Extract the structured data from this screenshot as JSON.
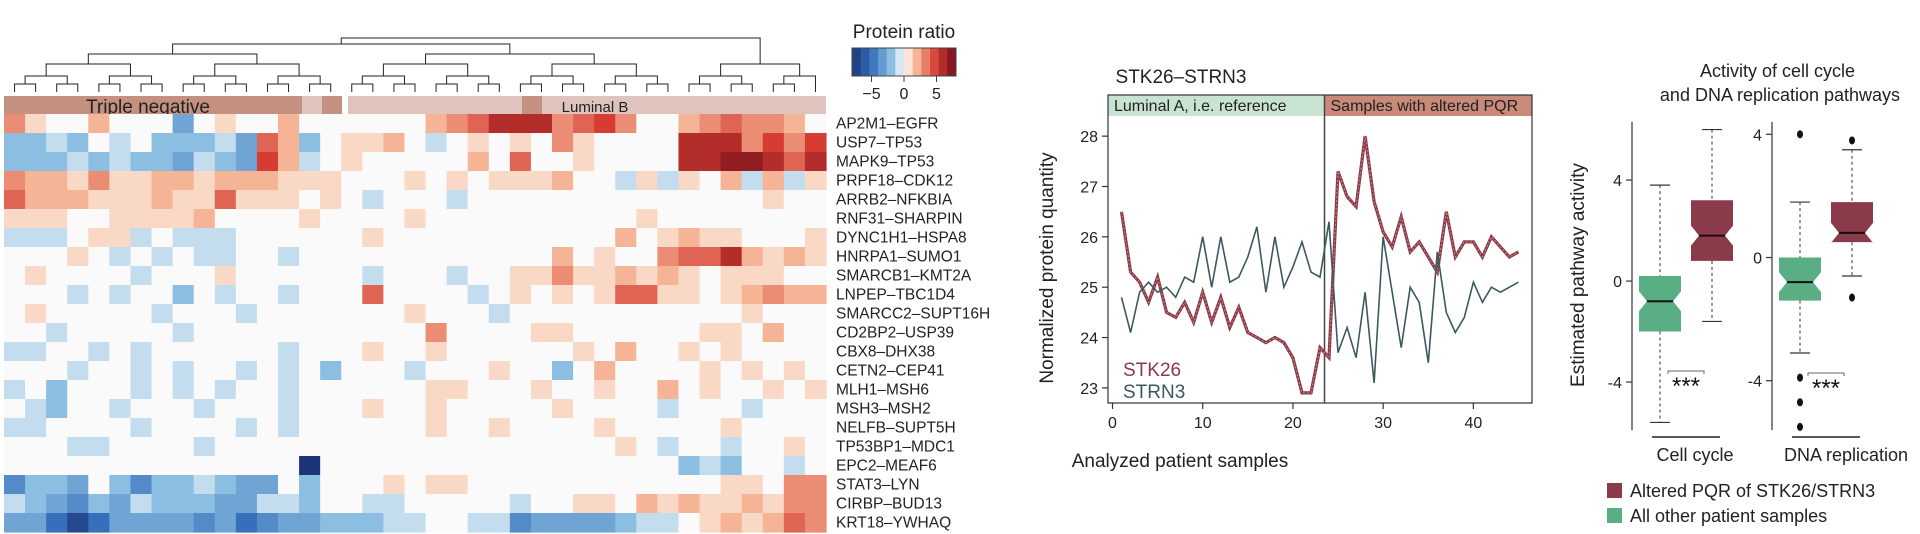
{
  "colors": {
    "teal_line": "#3b5a5e",
    "red_line": "#8b3a4a",
    "box_red": "#8b3a4a",
    "box_green": "#5aae83",
    "band_reference": "#c9e3d3",
    "band_altered": "#c98a7a",
    "bar_triple": "#c4907f",
    "bar_luminal": "#dfc4bd"
  },
  "chart_data": [
    {
      "type": "heatmap",
      "legend_title": "Protein ratio",
      "legend_ticks": [
        "−5",
        "0",
        "5"
      ],
      "legend_range": [
        -8,
        8
      ],
      "subtypes": [
        {
          "label": "Triple negative"
        },
        {
          "label": "Luminal B"
        }
      ],
      "rows": [
        "AP2M1–EGFR",
        "USP7–TP53",
        "MAPK9–TP53",
        "PRPF18–CDK12",
        "ARRB2–NFKBIA",
        "RNF31–SHARPIN",
        "DYNC1H1–HSPA8",
        "HNRPA1–SUMO1",
        "SMARCB1–KMT2A",
        "LNPEP–TBC1D4",
        "SMARCC2–SUPT16H",
        "CD2BP2–USP39",
        "CBX8–DHX38",
        "CETN2–CEP41",
        "MLH1–MSH6",
        "MSH3–MSH2",
        "NELFB–SUPT5H",
        "TP53BP1–MDC1",
        "EPC2–MEAF6",
        "STAT3–LYN",
        "CIRBP–BUD13",
        "KRT18–YWHAQ"
      ],
      "values": [
        [
          3,
          1,
          0,
          0,
          2,
          0,
          0,
          0,
          -3,
          0,
          1,
          0,
          0,
          2,
          0,
          0,
          0,
          0,
          0,
          0,
          2,
          3,
          4,
          6,
          6,
          6,
          3,
          4,
          5,
          3,
          0,
          0,
          2,
          3,
          4,
          3,
          3,
          2,
          0
        ],
        [
          -2,
          -2,
          -1,
          -2,
          0,
          -1,
          0,
          -2,
          -2,
          -2,
          -1,
          -3,
          4,
          2,
          -2,
          0,
          1,
          1,
          2,
          0,
          -1,
          0,
          1,
          0,
          1,
          0,
          3,
          1,
          0,
          0,
          0,
          0,
          6,
          6,
          6,
          3,
          5,
          3,
          5
        ],
        [
          -2,
          -2,
          -2,
          -1,
          -2,
          -1,
          -2,
          -2,
          -3,
          -1,
          -2,
          -3,
          5,
          2,
          -1,
          0,
          1,
          0,
          0,
          0,
          0,
          0,
          2,
          0,
          4,
          0,
          0,
          1,
          0,
          0,
          0,
          0,
          6,
          6,
          7,
          7,
          6,
          4,
          6
        ],
        [
          3,
          2,
          2,
          1,
          3,
          1,
          1,
          2,
          2,
          1,
          2,
          2,
          2,
          1,
          1,
          1,
          0,
          0,
          0,
          1,
          0,
          1,
          0,
          1,
          1,
          1,
          2,
          0,
          0,
          -1,
          1,
          -1,
          1,
          0,
          2,
          -1,
          2,
          -1,
          1
        ],
        [
          4,
          2,
          2,
          2,
          1,
          1,
          1,
          2,
          1,
          1,
          4,
          1,
          1,
          1,
          0,
          1,
          0,
          -1,
          0,
          0,
          0,
          -1,
          0,
          0,
          0,
          0,
          0,
          0,
          0,
          0,
          0,
          0,
          0,
          0,
          0,
          0,
          1,
          0,
          0
        ],
        [
          1,
          1,
          1,
          0,
          0,
          1,
          1,
          1,
          1,
          2,
          0,
          0,
          0,
          0,
          1,
          0,
          0,
          0,
          0,
          1,
          0,
          0,
          0,
          0,
          0,
          0,
          0,
          0,
          0,
          0,
          1,
          0,
          0,
          0,
          0,
          0,
          0,
          0,
          0
        ],
        [
          -1,
          -1,
          -1,
          0,
          1,
          1,
          -1,
          0,
          -1,
          -1,
          -1,
          0,
          0,
          0,
          0,
          0,
          0,
          1,
          0,
          0,
          0,
          0,
          0,
          0,
          0,
          0,
          0,
          0,
          0,
          2,
          0,
          1,
          2,
          1,
          1,
          0,
          0,
          0,
          1
        ],
        [
          0,
          0,
          0,
          1,
          0,
          -1,
          0,
          -1,
          0,
          -1,
          -1,
          0,
          0,
          -1,
          0,
          0,
          0,
          0,
          0,
          0,
          0,
          0,
          0,
          0,
          0,
          0,
          2,
          0,
          1,
          0,
          0,
          3,
          4,
          4,
          6,
          2,
          1,
          2,
          1
        ],
        [
          0,
          1,
          0,
          0,
          0,
          0,
          -1,
          0,
          0,
          0,
          1,
          0,
          0,
          0,
          0,
          0,
          0,
          -1,
          0,
          0,
          0,
          -1,
          0,
          0,
          1,
          1,
          3,
          1,
          1,
          2,
          1,
          2,
          1,
          0,
          1,
          1,
          1,
          0,
          0
        ],
        [
          0,
          0,
          0,
          -1,
          0,
          -1,
          0,
          0,
          -2,
          0,
          -1,
          0,
          0,
          -1,
          0,
          0,
          0,
          4,
          0,
          0,
          0,
          0,
          -1,
          0,
          1,
          0,
          1,
          0,
          1,
          4,
          4,
          1,
          1,
          0,
          1,
          2,
          3,
          2,
          2
        ],
        [
          0,
          1,
          0,
          0,
          0,
          0,
          0,
          -1,
          0,
          0,
          0,
          -1,
          0,
          0,
          0,
          0,
          0,
          0,
          0,
          1,
          0,
          0,
          0,
          -1,
          0,
          0,
          0,
          0,
          0,
          0,
          0,
          0,
          0,
          0,
          0,
          1,
          0,
          0,
          0
        ],
        [
          0,
          0,
          -1,
          0,
          0,
          0,
          0,
          0,
          -1,
          0,
          0,
          0,
          0,
          0,
          0,
          0,
          0,
          0,
          0,
          0,
          3,
          0,
          0,
          0,
          0,
          1,
          1,
          0,
          0,
          0,
          0,
          0,
          0,
          1,
          1,
          0,
          2,
          0,
          0
        ],
        [
          -1,
          -1,
          0,
          0,
          -1,
          0,
          -1,
          0,
          0,
          0,
          0,
          0,
          0,
          -1,
          0,
          0,
          0,
          1,
          0,
          0,
          1,
          0,
          0,
          0,
          0,
          0,
          0,
          1,
          0,
          2,
          0,
          0,
          1,
          0,
          1,
          0,
          0,
          0,
          0
        ],
        [
          0,
          0,
          0,
          -1,
          0,
          0,
          -1,
          0,
          -1,
          0,
          0,
          -1,
          0,
          -1,
          0,
          -2,
          0,
          0,
          0,
          -1,
          0,
          0,
          0,
          1,
          0,
          0,
          -2,
          0,
          2,
          0,
          0,
          0,
          0,
          1,
          0,
          1,
          0,
          1,
          0
        ],
        [
          -1,
          0,
          -2,
          0,
          0,
          0,
          -1,
          0,
          -1,
          0,
          -1,
          0,
          0,
          -1,
          0,
          0,
          0,
          0,
          0,
          0,
          1,
          1,
          0,
          0,
          0,
          1,
          0,
          0,
          1,
          0,
          0,
          2,
          0,
          1,
          0,
          0,
          1,
          0,
          1
        ],
        [
          0,
          -1,
          -2,
          0,
          0,
          -1,
          0,
          0,
          0,
          -1,
          0,
          0,
          0,
          -1,
          0,
          0,
          0,
          1,
          0,
          0,
          1,
          0,
          0,
          0,
          0,
          0,
          1,
          0,
          0,
          0,
          0,
          -1,
          0,
          0,
          0,
          -1,
          0,
          0,
          0
        ],
        [
          -1,
          -1,
          0,
          0,
          0,
          0,
          -1,
          0,
          0,
          0,
          0,
          -1,
          0,
          -1,
          0,
          0,
          0,
          0,
          0,
          0,
          1,
          0,
          0,
          1,
          0,
          0,
          0,
          0,
          1,
          0,
          0,
          0,
          0,
          0,
          1,
          0,
          0,
          0,
          0
        ],
        [
          0,
          0,
          0,
          -1,
          -1,
          0,
          0,
          0,
          0,
          -1,
          0,
          0,
          0,
          0,
          0,
          0,
          0,
          0,
          0,
          0,
          0,
          0,
          0,
          0,
          0,
          0,
          0,
          0,
          0,
          1,
          0,
          -1,
          0,
          0,
          -1,
          0,
          0,
          1,
          0
        ],
        [
          0,
          0,
          0,
          0,
          0,
          0,
          0,
          0,
          0,
          0,
          0,
          0,
          0,
          0,
          -8,
          0,
          0,
          0,
          0,
          0,
          0,
          0,
          0,
          0,
          0,
          0,
          0,
          0,
          0,
          0,
          0,
          0,
          -2,
          -1,
          -2,
          0,
          0,
          -1,
          0
        ],
        [
          -4,
          -2,
          -2,
          -3,
          0,
          -2,
          -4,
          -2,
          -2,
          -1,
          -2,
          -3,
          -3,
          0,
          -2,
          0,
          0,
          0,
          1,
          0,
          1,
          1,
          0,
          0,
          0,
          0,
          0,
          0,
          0,
          0,
          0,
          0,
          0,
          0,
          1,
          1,
          0,
          3,
          3
        ],
        [
          -1,
          -2,
          -3,
          -4,
          -2,
          -3,
          -1,
          -2,
          -2,
          -2,
          -3,
          -3,
          -1,
          -1,
          -2,
          0,
          0,
          -1,
          -1,
          0,
          0,
          0,
          0,
          0,
          -1,
          0,
          0,
          1,
          1,
          0,
          2,
          1,
          2,
          1,
          1,
          2,
          1,
          3,
          3
        ],
        [
          -3,
          -3,
          -5,
          -7,
          -5,
          -3,
          -3,
          -3,
          -3,
          -4,
          -3,
          -5,
          -4,
          -3,
          -3,
          -2,
          -2,
          -2,
          -1,
          -1,
          0,
          0,
          -1,
          -1,
          -4,
          -3,
          -3,
          -3,
          -3,
          -2,
          -1,
          -1,
          0,
          1,
          2,
          1,
          2,
          4,
          3
        ]
      ]
    },
    {
      "type": "line",
      "title": "STK26–STRN3",
      "xlabel": "Analyzed patient samples",
      "ylabel": "Normalized protein quantity",
      "xlim": [
        -0.5,
        46.5
      ],
      "ylim": [
        22.7,
        28.4
      ],
      "xticks": [
        0,
        10,
        20,
        30,
        40
      ],
      "yticks": [
        23,
        24,
        25,
        26,
        27,
        28
      ],
      "reference_label": "Luminal A, i.e. reference",
      "altered_label": "Samples with altered PQR",
      "split_x": 23.5,
      "series": [
        {
          "name": "STK26",
          "x": [
            1,
            2,
            3,
            4,
            5,
            6,
            7,
            8,
            9,
            10,
            11,
            12,
            13,
            14,
            15,
            16,
            17,
            18,
            19,
            20,
            21,
            22,
            23,
            24,
            25,
            26,
            27,
            28,
            29,
            30,
            31,
            32,
            33,
            34,
            35,
            36,
            37,
            38,
            39,
            40,
            41,
            42,
            43,
            44,
            45
          ],
          "values": [
            26.5,
            25.3,
            25.1,
            24.7,
            25.2,
            24.5,
            24.4,
            24.7,
            24.3,
            24.9,
            24.3,
            24.8,
            24.2,
            24.6,
            24.1,
            24.0,
            23.9,
            24.0,
            23.9,
            23.6,
            22.9,
            22.9,
            23.8,
            23.6,
            27.3,
            26.8,
            26.6,
            28.0,
            26.7,
            26.1,
            25.8,
            26.4,
            25.7,
            25.9,
            25.6,
            25.3,
            26.5,
            25.6,
            25.9,
            25.9,
            25.6,
            26.0,
            25.8,
            25.6,
            25.7
          ]
        },
        {
          "name": "STRN3",
          "x": [
            1,
            2,
            3,
            4,
            5,
            6,
            7,
            8,
            9,
            10,
            11,
            12,
            13,
            14,
            15,
            16,
            17,
            18,
            19,
            20,
            21,
            22,
            23,
            24,
            25,
            26,
            27,
            28,
            29,
            30,
            31,
            32,
            33,
            34,
            35,
            36,
            37,
            38,
            39,
            40,
            41,
            42,
            43,
            44,
            45
          ],
          "values": [
            24.8,
            24.1,
            24.9,
            25.1,
            24.9,
            25.0,
            24.8,
            25.2,
            25.1,
            26.0,
            25.0,
            26.0,
            25.1,
            25.2,
            25.6,
            26.2,
            24.9,
            26.0,
            25.0,
            25.4,
            25.9,
            25.3,
            25.2,
            26.3,
            23.7,
            24.2,
            23.6,
            24.9,
            23.1,
            26.0,
            24.9,
            23.8,
            25.0,
            24.7,
            23.5,
            25.7,
            24.5,
            24.1,
            24.4,
            25.1,
            24.7,
            25.0,
            24.9,
            25.0,
            25.1
          ]
        }
      ]
    },
    {
      "type": "boxplot",
      "title": "Activity of cell cycle and DNA replication pathways",
      "ylabel": "Estimated pathway activity",
      "significance": "***",
      "panels": [
        {
          "xlabel": "Cell cycle",
          "ylim": [
            -5.9,
            6.3
          ],
          "yticks": [
            -4,
            0,
            4
          ],
          "boxes": [
            {
              "group": "All other patient samples",
              "q1": -2.0,
              "median": -0.8,
              "q3": 0.2,
              "whisker_low": -5.6,
              "whisker_high": 3.8,
              "outliers": []
            },
            {
              "group": "Altered PQR of STK26/STRN3",
              "q1": 0.8,
              "median": 1.8,
              "q3": 3.2,
              "whisker_low": -1.6,
              "whisker_high": 6.0,
              "outliers": []
            }
          ]
        },
        {
          "xlabel": "DNA replication",
          "ylim": [
            -5.6,
            4.4
          ],
          "yticks": [
            -4,
            0,
            4
          ],
          "boxes": [
            {
              "group": "All other patient samples",
              "q1": -1.4,
              "median": -0.8,
              "q3": 0.0,
              "whisker_low": -3.1,
              "whisker_high": 1.8,
              "outliers": [
                -3.9,
                -4.7,
                -5.5,
                4.0
              ]
            },
            {
              "group": "Altered PQR of STK26/STRN3",
              "q1": 0.5,
              "median": 0.8,
              "q3": 1.8,
              "whisker_low": -0.6,
              "whisker_high": 3.5,
              "outliers": [
                -1.3,
                3.8
              ]
            }
          ]
        }
      ],
      "legend": [
        {
          "label": "Altered PQR of STK26/STRN3"
        },
        {
          "label": "All other patient samples"
        }
      ]
    }
  ]
}
